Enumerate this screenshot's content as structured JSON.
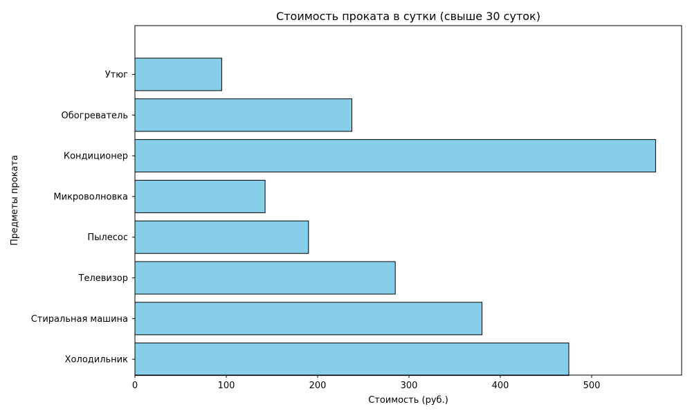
{
  "chart_data": {
    "type": "bar",
    "orientation": "horizontal",
    "title": "Стоимость проката в сутки (свыше 30 суток)",
    "xlabel": "Стоимость (руб.)",
    "ylabel": "Предметы проката",
    "categories": [
      "Холодильник",
      "Стиральная машина",
      "Телевизор",
      "Пылесос",
      "Микроволновка",
      "Кондиционер",
      "Обогреватель",
      "Утюг"
    ],
    "values": [
      475,
      380,
      285,
      190,
      142.5,
      570,
      237.5,
      95
    ],
    "xlim": [
      0,
      598.5
    ],
    "xticks": [
      "0",
      "100",
      "200",
      "300",
      "400",
      "500"
    ],
    "grid": false,
    "legend": "none",
    "bar_color": "#87ceeb",
    "bar_edge_color": "#000000"
  }
}
